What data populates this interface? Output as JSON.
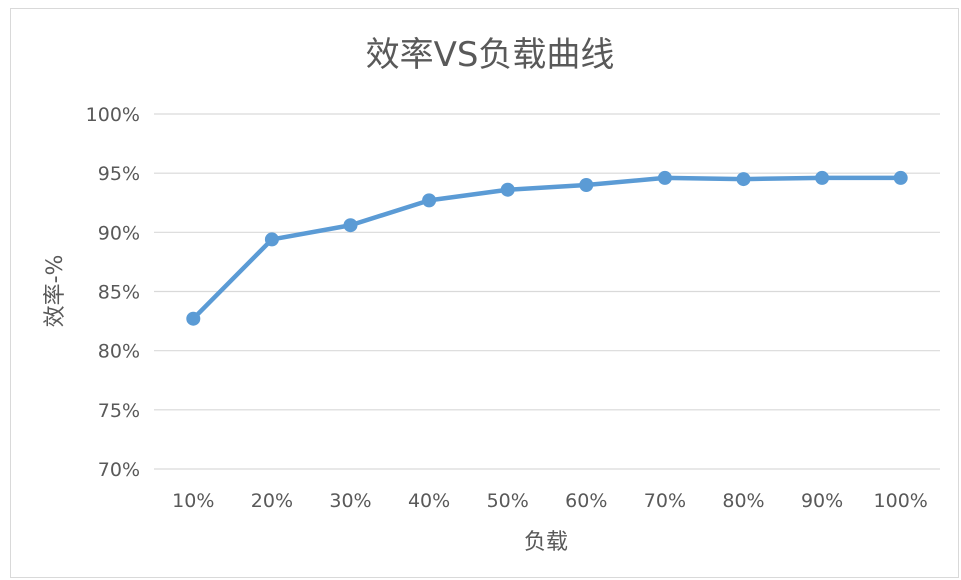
{
  "chart_data": {
    "type": "line",
    "title": "效率VS负载曲线",
    "xlabel": "负载",
    "ylabel": "效率-%",
    "categories": [
      "10%",
      "20%",
      "30%",
      "40%",
      "50%",
      "60%",
      "70%",
      "80%",
      "90%",
      "100%"
    ],
    "series": [
      {
        "values": [
          82.7,
          89.4,
          90.6,
          92.7,
          93.6,
          94.0,
          94.6,
          94.5,
          94.6,
          94.6
        ],
        "color": "#5b9bd5"
      }
    ],
    "yticks": [
      "70%",
      "75%",
      "80%",
      "85%",
      "90%",
      "95%",
      "100%"
    ],
    "ylim": [
      70,
      100
    ],
    "ytick_step": 5,
    "grid": true,
    "legend": "none",
    "marker": "circle"
  }
}
